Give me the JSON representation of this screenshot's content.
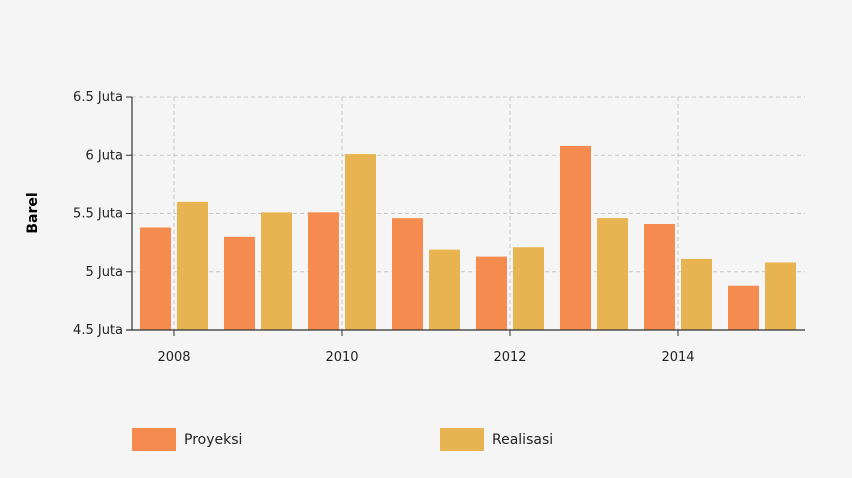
{
  "chart_data": {
    "type": "bar",
    "x": [
      2008,
      2009,
      2010,
      2011,
      2012,
      2013,
      2014,
      2015
    ],
    "x_tick_values": [
      2008,
      2010,
      2012,
      2014
    ],
    "x_tick_labels": [
      "2008",
      "2010",
      "2012",
      "2014"
    ],
    "ylabel": "Barel",
    "ylim": [
      4500000,
      6500000
    ],
    "y_tick_values": [
      4500000,
      5000000,
      5500000,
      6000000,
      6500000
    ],
    "y_tick_labels": [
      "4.5 Juta",
      "5 Juta",
      "5.5 Juta",
      "6 Juta",
      "6.5 Juta"
    ],
    "grid": true,
    "legend_position": "bottom",
    "series": [
      {
        "name": "Proyeksi",
        "color": "#f58b4e",
        "values": [
          5380000,
          5300000,
          5510000,
          5460000,
          5130000,
          6080000,
          5410000,
          4880000
        ]
      },
      {
        "name": "Realisasi",
        "color": "#e8b451",
        "values": [
          5600000,
          5510000,
          6010000,
          5190000,
          5210000,
          5460000,
          5110000,
          5080000
        ]
      }
    ]
  }
}
